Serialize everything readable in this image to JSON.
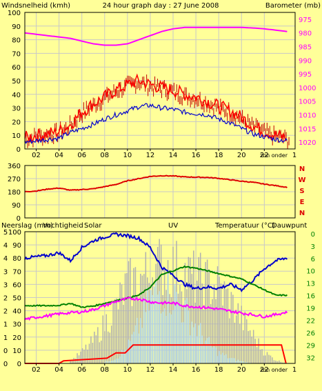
{
  "colors": {
    "page_bg": "#FFFF99",
    "frame": "#000000",
    "grid": "#C8C8C8",
    "wind_speed": "#FF0000",
    "wind_gust_fill": "#C00000",
    "wind_avg": "#0000CC",
    "barometer": "#FF00FF",
    "wind_dir": "#DD0000",
    "rain": "#FF0000",
    "humidity": "#0000CC",
    "temperature": "#008000",
    "dewpoint": "#FF00FF",
    "solar": "#B0B0B0",
    "uv": "#A8D0F0",
    "rain_label": "#CC0000",
    "humidity_label": "#0000CC",
    "solar_label": "#C0C0C0",
    "uv_label": "#B0B0C0",
    "temp_label": "#008000",
    "dew_label": "#CC00CC"
  },
  "header": {
    "left_label": "Windsnelheid (kmh)",
    "title": "24 hour graph day : 27 June 2008",
    "right_label": "Barometer (mb)"
  },
  "x_axis": {
    "ticks": [
      "02",
      "04",
      "06",
      "08",
      "10",
      "12",
      "14",
      "16",
      "18",
      "20",
      "22"
    ],
    "end_tick": "1",
    "sunset_label": "zon onder"
  },
  "panel3_labels": {
    "rain": "Neerslag (mm)",
    "humidity": "Vochtigheid",
    "solar": "Solar",
    "uv": "UV",
    "temperature": "Temperatuur (°C)",
    "dewpoint": "Dauwpunt"
  },
  "chart_data": [
    {
      "type": "line",
      "panel": "wind_barometer",
      "x_unit": "hour_of_day",
      "y_left": {
        "label": "Windsnelheid (kmh)",
        "range": [
          0,
          100
        ],
        "ticks": [
          "0",
          "10",
          "20",
          "30",
          "40",
          "50",
          "60",
          "70",
          "80",
          "90",
          "100"
        ]
      },
      "y_right": {
        "label": "Barometer (mb)",
        "range": [
          972.5,
          1022.5
        ],
        "ticks": [
          "975",
          "980",
          "985",
          "990",
          "995",
          "1000",
          "1005",
          "1010",
          "1015",
          "1020"
        ]
      },
      "grid": true,
      "series": [
        {
          "key": "gust",
          "axis": "left",
          "x": [
            1,
            2,
            3,
            4,
            5,
            6,
            7,
            8,
            9,
            10,
            11,
            12,
            13,
            14,
            15,
            16,
            17,
            18,
            19,
            20,
            21,
            22,
            23,
            24
          ],
          "y": [
            8,
            10,
            11,
            13,
            18,
            27,
            33,
            38,
            43,
            47,
            50,
            47,
            45,
            43,
            40,
            38,
            35,
            31,
            28,
            23,
            17,
            13,
            10,
            8
          ]
        },
        {
          "key": "avg",
          "axis": "left",
          "x": [
            1,
            2,
            3,
            4,
            5,
            6,
            7,
            8,
            9,
            10,
            11,
            12,
            13,
            14,
            15,
            16,
            17,
            18,
            19,
            20,
            21,
            22,
            23,
            24
          ],
          "y": [
            5,
            6,
            7,
            8,
            12,
            15,
            18,
            22,
            25,
            28,
            31,
            32,
            30,
            29,
            27,
            26,
            25,
            22,
            19,
            15,
            11,
            9,
            7,
            6
          ]
        },
        {
          "key": "barometer",
          "axis": "right",
          "x": [
            1,
            2,
            3,
            4,
            5,
            6,
            7,
            8,
            9,
            10,
            11,
            12,
            13,
            14,
            15,
            16,
            17,
            18,
            19,
            20,
            21,
            22,
            23,
            24
          ],
          "y": [
            1015,
            1014.5,
            1014,
            1013.5,
            1013,
            1012,
            1011,
            1010.5,
            1010.5,
            1011,
            1012.5,
            1014,
            1015.5,
            1016.5,
            1017,
            1017,
            1017,
            1017,
            1017,
            1017,
            1016.8,
            1016.5,
            1016,
            1015.5
          ]
        }
      ]
    },
    {
      "type": "line",
      "panel": "wind_direction",
      "x_unit": "hour_of_day",
      "y_left": {
        "range": [
          0,
          360
        ],
        "ticks": [
          "0",
          "90",
          "180",
          "270",
          "360"
        ]
      },
      "y_right_labels": [
        "N",
        "W",
        "S",
        "E",
        "N"
      ],
      "grid": true,
      "series": [
        {
          "key": "direction",
          "x": [
            1,
            2,
            3,
            4,
            5,
            6,
            7,
            8,
            9,
            10,
            11,
            12,
            13,
            14,
            15,
            16,
            17,
            18,
            19,
            20,
            21,
            22,
            23,
            24
          ],
          "y": [
            180,
            185,
            198,
            205,
            190,
            195,
            200,
            215,
            230,
            255,
            270,
            285,
            290,
            288,
            282,
            280,
            278,
            272,
            262,
            252,
            245,
            232,
            222,
            210
          ]
        }
      ]
    },
    {
      "type": "area",
      "panel": "rain_humidity_temperature",
      "x_unit": "hour_of_day",
      "y_left": {
        "label": "Neerslag (mm)",
        "ticks": [
          "0",
          "0",
          "1",
          "1",
          "2",
          "2",
          "3",
          "3",
          "4",
          "4",
          "5"
        ]
      },
      "y_left2": {
        "label": "Vochtigheid",
        "range": [
          0,
          100
        ],
        "ticks": [
          "0",
          "10",
          "20",
          "30",
          "40",
          "50",
          "60",
          "70",
          "80",
          "90",
          "100"
        ]
      },
      "y_right": {
        "label": "Temperatuur (°C)",
        "range": [
          -1.5,
          32.5
        ],
        "ticks": [
          "0",
          "3",
          "6",
          "10",
          "13",
          "16",
          "19",
          "22",
          "26",
          "29",
          "32"
        ]
      },
      "grid": true,
      "series": [
        {
          "key": "humidity",
          "axis": "left2",
          "x": [
            1,
            2,
            3,
            4,
            5,
            6,
            7,
            8,
            9,
            10,
            11,
            12,
            13,
            14,
            15,
            16,
            17,
            18,
            19,
            20,
            21,
            22,
            23,
            24
          ],
          "y": [
            80,
            81,
            82,
            84,
            78,
            88,
            93,
            96,
            98,
            97,
            95,
            88,
            73,
            67,
            60,
            57,
            58,
            57,
            60,
            56,
            63,
            72,
            78,
            80
          ]
        },
        {
          "key": "temperature",
          "axis": "right",
          "x": [
            1,
            2,
            3,
            4,
            5,
            6,
            7,
            8,
            9,
            10,
            11,
            12,
            13,
            14,
            15,
            16,
            17,
            18,
            19,
            20,
            21,
            22,
            23,
            24
          ],
          "y": [
            13.4,
            13.4,
            13.4,
            13.5,
            14.0,
            13.0,
            13.3,
            14.0,
            14.7,
            15.4,
            16.1,
            18.2,
            21.4,
            22.4,
            23.5,
            23.1,
            22.4,
            21.7,
            21.0,
            20.3,
            18.9,
            17.5,
            16.1,
            16.1
          ]
        },
        {
          "key": "dewpoint",
          "axis": "right",
          "x": [
            1,
            2,
            3,
            4,
            5,
            6,
            7,
            8,
            9,
            10,
            11,
            12,
            13,
            14,
            15,
            16,
            17,
            18,
            19,
            20,
            21,
            22,
            23,
            24
          ],
          "y": [
            9.9,
            10.4,
            10.8,
            11.3,
            11.6,
            11.8,
            12.4,
            13.4,
            14.5,
            15.2,
            15.2,
            14.4,
            14.1,
            14.1,
            13.4,
            13.1,
            12.9,
            12.5,
            12.0,
            11.5,
            11.1,
            10.6,
            11.1,
            11.8
          ]
        },
        {
          "key": "rain",
          "axis": "left2",
          "x": [
            0,
            4.0,
            4.4,
            8.2,
            9.0,
            9.8,
            10.5,
            23.5,
            23.9
          ],
          "y": [
            0,
            0,
            2,
            4,
            8,
            8,
            14,
            14,
            0
          ]
        },
        {
          "key": "solar",
          "axis": "left2",
          "x": [
            5,
            6,
            7,
            8,
            9,
            10,
            11,
            12,
            13,
            14,
            15,
            16,
            17,
            18,
            19,
            20,
            21,
            22,
            23,
            24
          ],
          "y": [
            2,
            10,
            20,
            35,
            50,
            70,
            75,
            80,
            88,
            85,
            80,
            75,
            72,
            68,
            55,
            40,
            25,
            10,
            3,
            0
          ]
        },
        {
          "key": "uv",
          "axis": "left2",
          "x": [
            8,
            9,
            10,
            11,
            12,
            13,
            14,
            15,
            16,
            17,
            18,
            19,
            20,
            21
          ],
          "y": [
            1,
            5,
            15,
            35,
            60,
            70,
            65,
            50,
            35,
            20,
            10,
            5,
            2,
            0
          ]
        }
      ]
    }
  ]
}
